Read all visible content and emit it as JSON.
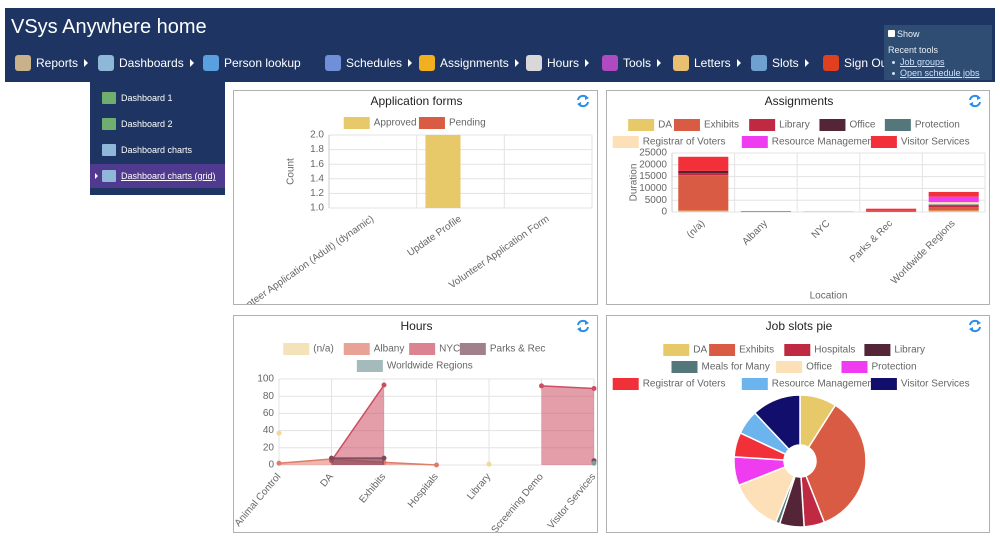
{
  "header": {
    "title": "VSys Anywhere home",
    "menu": [
      "Reports",
      "Dashboards",
      "Person lookup",
      "Schedules",
      "Assignments",
      "Hours",
      "Tools",
      "Letters",
      "Slots",
      "Sign Out"
    ],
    "dropdown": [
      "Dashboard 1",
      "Dashboard 2",
      "Dashboard charts",
      "Dashboard charts (grid)"
    ]
  },
  "recent_tools": {
    "show": "Show",
    "title": "Recent tools",
    "links": [
      "Job groups",
      "Open schedule jobs"
    ]
  },
  "chart_data": [
    {
      "type": "bar",
      "title": "Application forms",
      "y_label": "Count",
      "categories": [
        "Volunteer Application (Adult) (dynamic)",
        "Update Profile",
        "Volunteer Application Form"
      ],
      "series": [
        {
          "name": "Approved",
          "color": "#e8c96a",
          "values": [
            null,
            2,
            null
          ]
        },
        {
          "name": "Pending",
          "color": "#d95b43",
          "values": [
            null,
            null,
            null
          ]
        }
      ],
      "ylim": [
        1,
        2
      ],
      "yticks": [
        {
          "value": 1,
          "label": "1.0"
        },
        1.2,
        1.4,
        1.6,
        1.8,
        {
          "value": 2,
          "label": "2.0"
        }
      ],
      "grid": true
    },
    {
      "type": "bar",
      "stacked": true,
      "title": "Assignments",
      "x_label": "Location",
      "y_label": "Duration",
      "categories": [
        "(n/a)",
        "Albany",
        "NYC",
        "Parks & Rec",
        "Worldwide Regions"
      ],
      "series": [
        {
          "name": "DA",
          "color": "#e8c96a",
          "values": [
            600,
            100,
            0,
            0,
            600
          ]
        },
        {
          "name": "Exhibits",
          "color": "#d95b43",
          "values": [
            15000,
            300,
            100,
            300,
            1500
          ]
        },
        {
          "name": "Library",
          "color": "#c02942",
          "values": [
            800,
            0,
            0,
            200,
            500
          ]
        },
        {
          "name": "Office",
          "color": "#542437",
          "values": [
            1000,
            0,
            0,
            0,
            300
          ]
        },
        {
          "name": "Protection",
          "color": "#53777a",
          "values": [
            0,
            0,
            0,
            0,
            300
          ]
        },
        {
          "name": "Registrar of Voters",
          "color": "#fddfb8",
          "values": [
            0,
            0,
            0,
            0,
            1000
          ]
        },
        {
          "name": "Resource Management",
          "color": "#f03cf0",
          "values": [
            0,
            0,
            0,
            0,
            2300
          ]
        },
        {
          "name": "Visitor Services",
          "color": "#f2303a",
          "values": [
            6000,
            0,
            0,
            900,
            2000
          ]
        }
      ],
      "ylim": [
        0,
        25000
      ],
      "yticks": [
        0,
        5000,
        10000,
        15000,
        20000,
        25000
      ],
      "grid": true
    },
    {
      "type": "line",
      "title": "Hours",
      "categories": [
        "Animal Control",
        "DA",
        "Exhibits",
        "Hospitals",
        "Library",
        "Screening Demo",
        "Visitor Services"
      ],
      "series": [
        {
          "name": "(n/a)",
          "color": "#f0d79a",
          "values": [
            37,
            null,
            null,
            null,
            1,
            null,
            3
          ]
        },
        {
          "name": "Albany",
          "color": "#e07b6a",
          "values": [
            2,
            7,
            3,
            0,
            null,
            null,
            null
          ]
        },
        {
          "name": "NYC",
          "color": "#cc4e63",
          "values": [
            null,
            5,
            93,
            null,
            null,
            92,
            89
          ]
        },
        {
          "name": "Parks & Rec",
          "color": "#7a4a5a",
          "values": [
            null,
            8,
            8,
            null,
            null,
            null,
            5
          ]
        },
        {
          "name": "Worldwide Regions",
          "color": "#7f9c9c",
          "values": [
            null,
            null,
            null,
            null,
            null,
            null,
            2
          ]
        }
      ],
      "ylim": [
        0,
        100
      ],
      "yticks": [
        0,
        20,
        40,
        60,
        80,
        100
      ],
      "grid": true
    },
    {
      "type": "pie",
      "title": "Job slots pie",
      "categories": [
        "DA",
        "Exhibits",
        "Hospitals",
        "Library",
        "Meals for Many",
        "Office",
        "Protection",
        "Registrar of Voters",
        "Resource Management",
        "Visitor Services"
      ],
      "colors": [
        "#e8c96a",
        "#d95b43",
        "#c02942",
        "#542437",
        "#53777a",
        "#fddfb8",
        "#f03cf0",
        "#f2303a",
        "#6cb4ee",
        "#120e6b"
      ],
      "values": [
        9,
        35,
        5,
        6,
        1,
        13,
        7,
        6,
        6,
        12
      ]
    }
  ]
}
